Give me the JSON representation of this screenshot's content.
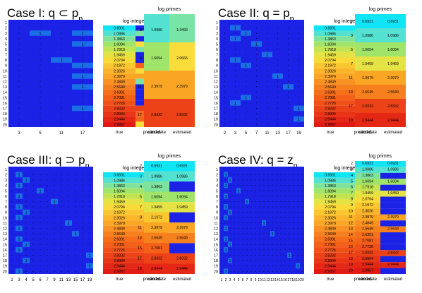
{
  "chart_data": [
    {
      "type": "heatmap",
      "title": "Case I: q ⊂ p",
      "title_sub": "n",
      "rows": [
        "1",
        "2",
        "3",
        "4",
        "5",
        "6",
        "7",
        "8",
        "9",
        "10",
        "11",
        "12",
        "13",
        "14",
        "15",
        "16",
        "17",
        "18",
        "19",
        "20"
      ],
      "x_ticks": [
        "3",
        "5",
        "11",
        "17"
      ],
      "counts": {
        "3": [
          1,
          3
        ],
        "5": [
          4,
          5
        ],
        "8": [
          2
        ],
        "9": [
          10
        ],
        "11": [
          9
        ],
        "13": [
          8
        ],
        "17": [
          14
        ]
      },
      "table1": {
        "header": "log integers",
        "col_labels": [
          "true",
          "predicted"
        ],
        "true": [
          "0.6931",
          "1.0986",
          "1.3863",
          "1.6094",
          "1.7918",
          "1.9459",
          "2.0794",
          "2.1972",
          "2.3026",
          "2.3979",
          "2.4849",
          "2.5649",
          "2.6391",
          "2.7081",
          "2.7726",
          "2.8332",
          "2.8904",
          "2.9444",
          "2.9957"
        ],
        "predicted": [
          "",
          "1.3493",
          "",
          "2.0666",
          "1.3493",
          "",
          "",
          "2.6987",
          "2.0666",
          "2.3979",
          "1.3493",
          "",
          "",
          "",
          "",
          "2.8332",
          "2.6987",
          "2.6987",
          "2.0666"
        ]
      },
      "table2": {
        "header": "log primes",
        "col_labels": [
          "candidate",
          "estimated"
        ],
        "rows": [
          [
            "3",
            "1.0986",
            "1.3493"
          ],
          [
            "5",
            "1.6094",
            "2.0666"
          ],
          [
            "11",
            "2.3979",
            "2.3979"
          ],
          [
            "17",
            "2.8332",
            "2.8332"
          ]
        ]
      }
    },
    {
      "type": "heatmap",
      "title": "Case II: q = p",
      "title_sub": "n",
      "rows": [
        "1",
        "2",
        "3",
        "4",
        "5",
        "6",
        "7",
        "8",
        "9",
        "10",
        "11",
        "12",
        "13",
        "14",
        "15",
        "16",
        "17",
        "18",
        "19",
        "20"
      ],
      "x_ticks": [
        "2",
        "3",
        "5",
        "7",
        "11",
        "13",
        "17",
        "19"
      ],
      "counts": {
        "2": [
          1
        ],
        "3": [
          2
        ],
        "4": [
          1
        ],
        "5": [
          3
        ],
        "7": [
          4
        ],
        "8": [
          1
        ],
        "9": [
          2
        ],
        "11": [
          5
        ],
        "13": [
          6
        ],
        "15": [
          2
        ],
        "16": [
          1
        ],
        "17": [
          7
        ],
        "19": [
          8
        ]
      },
      "table1": {
        "header": "log integers",
        "col_labels": [
          "true",
          "predicted"
        ],
        "true": [
          "0.6931",
          "1.0986",
          "1.3863",
          "1.6094",
          "1.7918",
          "1.9459",
          "2.0794",
          "2.1972",
          "2.3026",
          "2.3979",
          "2.4849",
          "2.5649",
          "2.6391",
          "2.7081",
          "2.7726",
          "2.8332",
          "2.8904",
          "2.9444",
          "2.9957"
        ],
        "predicted": [
          "0.6931",
          "1.0986",
          "1.3863",
          "1.6094",
          "1.7918",
          "1.9459",
          "2.0794",
          "2.1972",
          "2.3026",
          "2.3979",
          "2.4849",
          "2.5649",
          "2.6391",
          "2.7081",
          "2.7726",
          "2.8332",
          "2.8904",
          "2.9444",
          "2.9957"
        ]
      },
      "table2": {
        "header": "log primes",
        "col_labels": [
          "candidate",
          "estimated"
        ],
        "rows": [
          [
            "2",
            "0.6931",
            "0.6931"
          ],
          [
            "3",
            "1.0986",
            "1.0986"
          ],
          [
            "5",
            "1.6094",
            "1.6094"
          ],
          [
            "7",
            "1.9459",
            "1.9459"
          ],
          [
            "11",
            "2.3979",
            "2.3979"
          ],
          [
            "13",
            "2.5649",
            "2.5649"
          ],
          [
            "17",
            "2.8332",
            "2.8332"
          ],
          [
            "19",
            "2.9444",
            "2.9444"
          ]
        ]
      }
    },
    {
      "type": "heatmap",
      "title": "Case III: q ⊃ p",
      "title_sub": "n",
      "rows": [
        "1",
        "2",
        "3",
        "4",
        "5",
        "6",
        "7",
        "8",
        "9",
        "10",
        "11",
        "12",
        "13",
        "14",
        "15",
        "16",
        "17",
        "18",
        "19",
        "20"
      ],
      "x_ticks": [
        "2",
        "3",
        "4",
        "5",
        "6",
        "7",
        "9",
        "11",
        "13",
        "15",
        "17",
        "19"
      ],
      "counts": {
        "2": [
          1
        ],
        "3": [
          2
        ],
        "4": [
          1
        ],
        "5": [
          4
        ],
        "6": [
          1
        ],
        "7": [
          6
        ],
        "8": [
          1
        ],
        "9": [
          2
        ],
        "10": [
          1
        ],
        "11": [
          8
        ],
        "12": [
          1
        ],
        "13": [
          9
        ],
        "14": [
          1
        ],
        "15": [
          2
        ],
        "16": [
          1
        ],
        "17": [
          11
        ],
        "18": [
          2
        ],
        "19": [
          12
        ],
        "20": [
          1
        ]
      },
      "table1": {
        "header": "log integers",
        "col_labels": [
          "true",
          "predicted"
        ],
        "true": [
          "0.6931",
          "1.0986",
          "1.3863",
          "1.6094",
          "1.7918",
          "1.9459",
          "2.0794",
          "2.1972",
          "2.3026",
          "2.3979",
          "2.4849",
          "2.5649",
          "2.6391",
          "2.7081",
          "2.7726",
          "2.8332",
          "2.8904",
          "2.9444",
          "2.9957"
        ],
        "predicted": [
          "0.6931",
          "1.0986",
          "1.3863",
          "1.6094",
          "1.7918",
          "1.9459",
          "2.0794",
          "2.1972",
          "2.3026",
          "2.3979",
          "2.4849",
          "2.5649",
          "2.6391",
          "2.7081",
          "2.7726",
          "2.8332",
          "2.8904",
          "2.9444",
          "2.9957"
        ]
      },
      "table2": {
        "header": "log primes",
        "col_labels": [
          "candidate",
          "estimated"
        ],
        "rows": [
          [
            "2",
            "0.6931",
            "0.6931"
          ],
          [
            "3",
            "1.0986",
            "1.0986"
          ],
          [
            "4",
            "1.3863",
            ""
          ],
          [
            "5",
            "1.6094",
            "1.6094"
          ],
          [
            "7",
            "1.9459",
            "1.9459"
          ],
          [
            "9",
            "2.1972",
            ""
          ],
          [
            "11",
            "2.3979",
            "2.3979"
          ],
          [
            "13",
            "2.5649",
            "2.5649"
          ],
          [
            "15",
            "2.7081",
            ""
          ],
          [
            "17",
            "2.8332",
            "2.8332"
          ],
          [
            "19",
            "2.9444",
            "2.9444"
          ]
        ]
      }
    },
    {
      "type": "heatmap",
      "title": "Case IV: q = z",
      "title_sub": "n",
      "rows": [
        "1",
        "2",
        "3",
        "4",
        "5",
        "6",
        "7",
        "8",
        "9",
        "10",
        "11",
        "12",
        "13",
        "14",
        "15",
        "16",
        "17",
        "18",
        "19",
        "20"
      ],
      "x_ticks": [
        "1",
        "2",
        "3",
        "4",
        "5",
        "6",
        "7",
        "8",
        "9",
        "10",
        "11",
        "12",
        "13",
        "14",
        "15",
        "16",
        "17",
        "18",
        "19",
        "20"
      ],
      "x_tick_label": "1 2 3 4 5 6 7 8 9 10111213141516171819 20",
      "counts": {
        "2": [
          1
        ],
        "3": [
          2
        ],
        "4": [
          1
        ],
        "5": [
          4
        ],
        "6": [
          1
        ],
        "7": [
          6
        ],
        "8": [
          1
        ],
        "9": [
          2
        ],
        "10": [
          1
        ],
        "11": [
          10
        ],
        "12": [
          1
        ],
        "13": [
          12
        ],
        "14": [
          1
        ],
        "15": [
          2
        ],
        "16": [
          1
        ],
        "17": [
          16
        ],
        "18": [
          2
        ],
        "19": [
          18
        ],
        "20": [
          1
        ]
      },
      "table1": {
        "header": "log integers",
        "col_labels": [
          "true",
          "predicted"
        ],
        "true": [
          "0.6931",
          "1.0986",
          "1.3863",
          "1.6094",
          "1.7918",
          "1.9459",
          "2.0794",
          "2.1972",
          "2.3026",
          "2.3979",
          "2.4849",
          "2.5649",
          "2.6391",
          "2.7081",
          "2.7726",
          "2.8332",
          "2.8904",
          "2.9444",
          "2.9957"
        ],
        "predicted": [
          "0.6931",
          "1.0986",
          "1.3863",
          "1.6094",
          "1.7918",
          "1.9459",
          "2.0794",
          "2.1972",
          "2.3026",
          "2.3979",
          "2.4849",
          "2.5649",
          "2.6391",
          "2.7081",
          "2.7726",
          "2.8332",
          "2.8904",
          "2.9444",
          "2.9957"
        ]
      },
      "table2": {
        "header": "log primes",
        "col_labels": [
          "candidate",
          "estimated"
        ],
        "rows": [
          [
            "2",
            "0.6931",
            "0.6931"
          ],
          [
            "3",
            "1.0986",
            "1.0986"
          ],
          [
            "4",
            "1.3863",
            ""
          ],
          [
            "5",
            "1.6094",
            "1.6094"
          ],
          [
            "6",
            "1.7918",
            ""
          ],
          [
            "7",
            "1.9459",
            "1.9459"
          ],
          [
            "8",
            "2.0794",
            ""
          ],
          [
            "9",
            "2.1972",
            ""
          ],
          [
            "10",
            "2.3026",
            ""
          ],
          [
            "11",
            "2.3979",
            "2.3979"
          ],
          [
            "12",
            "2.4849",
            ""
          ],
          [
            "13",
            "2.5649",
            "2.5649"
          ],
          [
            "14",
            "2.6391",
            ""
          ],
          [
            "15",
            "2.7081",
            ""
          ],
          [
            "16",
            "2.7726",
            ""
          ],
          [
            "17",
            "2.8332",
            "2.8332"
          ],
          [
            "18",
            "2.8904",
            ""
          ],
          [
            "19",
            "2.9444",
            "2.9444"
          ],
          [
            "20",
            "2.9957",
            ""
          ]
        ]
      }
    }
  ]
}
